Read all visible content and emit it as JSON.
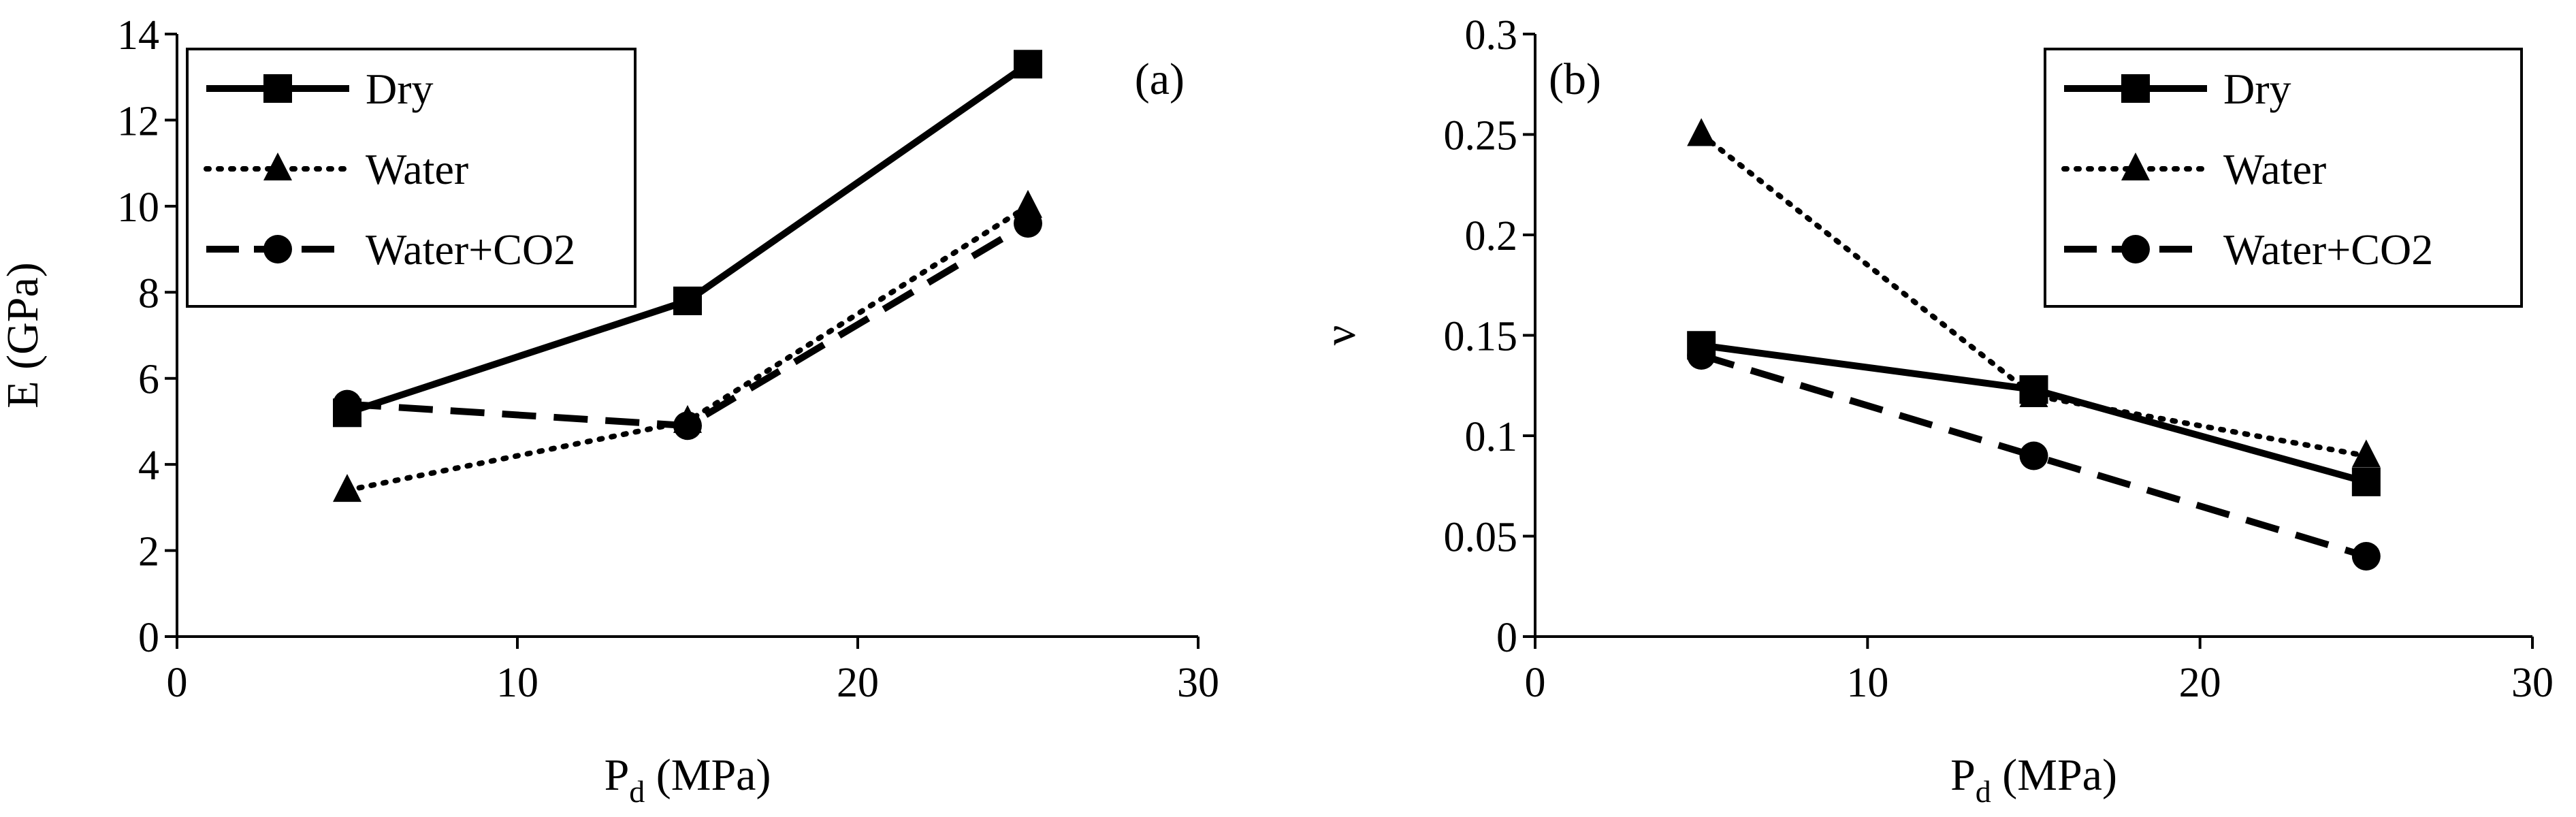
{
  "chart_data": [
    {
      "type": "line",
      "panel_label": "(a)",
      "xlabel": "P",
      "xlabel_sub": "d",
      "xlabel_unit": " (MPa)",
      "ylabel": "E (GPa)",
      "xlim": [
        0,
        30
      ],
      "ylim": [
        0,
        14
      ],
      "xticks": [
        0,
        10,
        20,
        30
      ],
      "yticks": [
        0,
        2,
        4,
        6,
        8,
        10,
        12,
        14
      ],
      "ytick_labels": [
        "0",
        "2",
        "4",
        "6",
        "8",
        "10",
        "12",
        "14"
      ],
      "grid": false,
      "legend_position": "top-left",
      "x": [
        5,
        15,
        25
      ],
      "series": [
        {
          "name": "Dry",
          "values": [
            5.2,
            7.8,
            13.3
          ],
          "line": "solid",
          "marker": "square"
        },
        {
          "name": "Water",
          "values": [
            3.4,
            5.0,
            10.0
          ],
          "line": "dotted",
          "marker": "triangle"
        },
        {
          "name": "Water+CO2",
          "values": [
            5.4,
            4.9,
            9.6
          ],
          "line": "dashed",
          "marker": "circle"
        }
      ]
    },
    {
      "type": "line",
      "panel_label": "(b)",
      "xlabel": "P",
      "xlabel_sub": "d",
      "xlabel_unit": " (MPa)",
      "ylabel": "ν",
      "xlim": [
        0,
        30
      ],
      "ylim": [
        0,
        0.3
      ],
      "xticks": [
        0,
        10,
        20,
        30
      ],
      "yticks": [
        0,
        0.05,
        0.1,
        0.15,
        0.2,
        0.25,
        0.3
      ],
      "ytick_labels": [
        "0",
        "0.05",
        "0.1",
        "0.15",
        "0.2",
        "0.25",
        "0.3"
      ],
      "grid": false,
      "legend_position": "top-right",
      "x": [
        5,
        15,
        25
      ],
      "series": [
        {
          "name": "Dry",
          "values": [
            0.145,
            0.123,
            0.077
          ],
          "line": "solid",
          "marker": "square"
        },
        {
          "name": "Water",
          "values": [
            0.25,
            0.12,
            0.09
          ],
          "line": "dotted",
          "marker": "triangle"
        },
        {
          "name": "Water+CO2",
          "values": [
            0.14,
            0.09,
            0.04
          ],
          "line": "dashed",
          "marker": "circle"
        }
      ]
    }
  ]
}
